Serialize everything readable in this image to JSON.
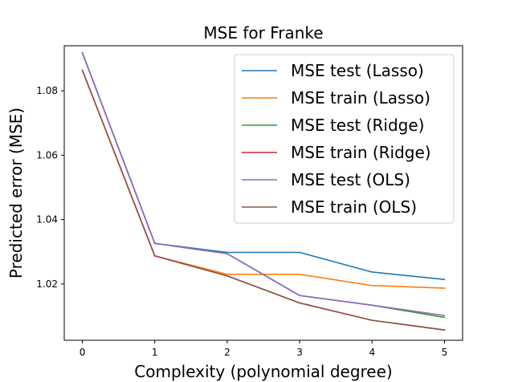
{
  "chart_data": {
    "type": "line",
    "title": "MSE for Franke",
    "xlabel": "Complexity (polynomial degree)",
    "ylabel": "Predicted error (MSE)",
    "x": [
      0,
      1,
      2,
      3,
      4,
      5
    ],
    "xlim": [
      -0.25,
      5.25
    ],
    "ylim": [
      1.0025,
      1.094
    ],
    "xticks": [
      0,
      1,
      2,
      3,
      4,
      5
    ],
    "xtick_labels": [
      "0",
      "1",
      "2",
      "3",
      "4",
      "5"
    ],
    "yticks": [
      1.02,
      1.04,
      1.06,
      1.08
    ],
    "ytick_labels": [
      "1.02",
      "1.04",
      "1.06",
      "1.08"
    ],
    "grid": false,
    "legend_position": "top-right",
    "series": [
      {
        "name": "MSE test (Lasso)",
        "color": "#1f77b4",
        "values": [
          1.0918,
          1.0326,
          1.0298,
          1.0298,
          1.0237,
          1.0214
        ]
      },
      {
        "name": "MSE train (Lasso)",
        "color": "#ff7f0e",
        "values": [
          1.0864,
          1.0287,
          1.023,
          1.023,
          1.0195,
          1.0187
        ]
      },
      {
        "name": "MSE test (Ridge)",
        "color": "#2ca02c",
        "values": [
          1.0918,
          1.0326,
          1.0294,
          1.0164,
          1.0134,
          1.0096
        ]
      },
      {
        "name": "MSE train (Ridge)",
        "color": "#d62728",
        "values": [
          1.0864,
          1.0287,
          1.0225,
          1.0141,
          1.0087,
          1.0057
        ]
      },
      {
        "name": "MSE test (OLS)",
        "color": "#9467bd",
        "values": [
          1.0918,
          1.0326,
          1.0294,
          1.0164,
          1.0134,
          1.0102
        ]
      },
      {
        "name": "MSE train (OLS)",
        "color": "#8c564b",
        "values": [
          1.0864,
          1.0287,
          1.0225,
          1.0141,
          1.0087,
          1.0057
        ]
      }
    ]
  }
}
